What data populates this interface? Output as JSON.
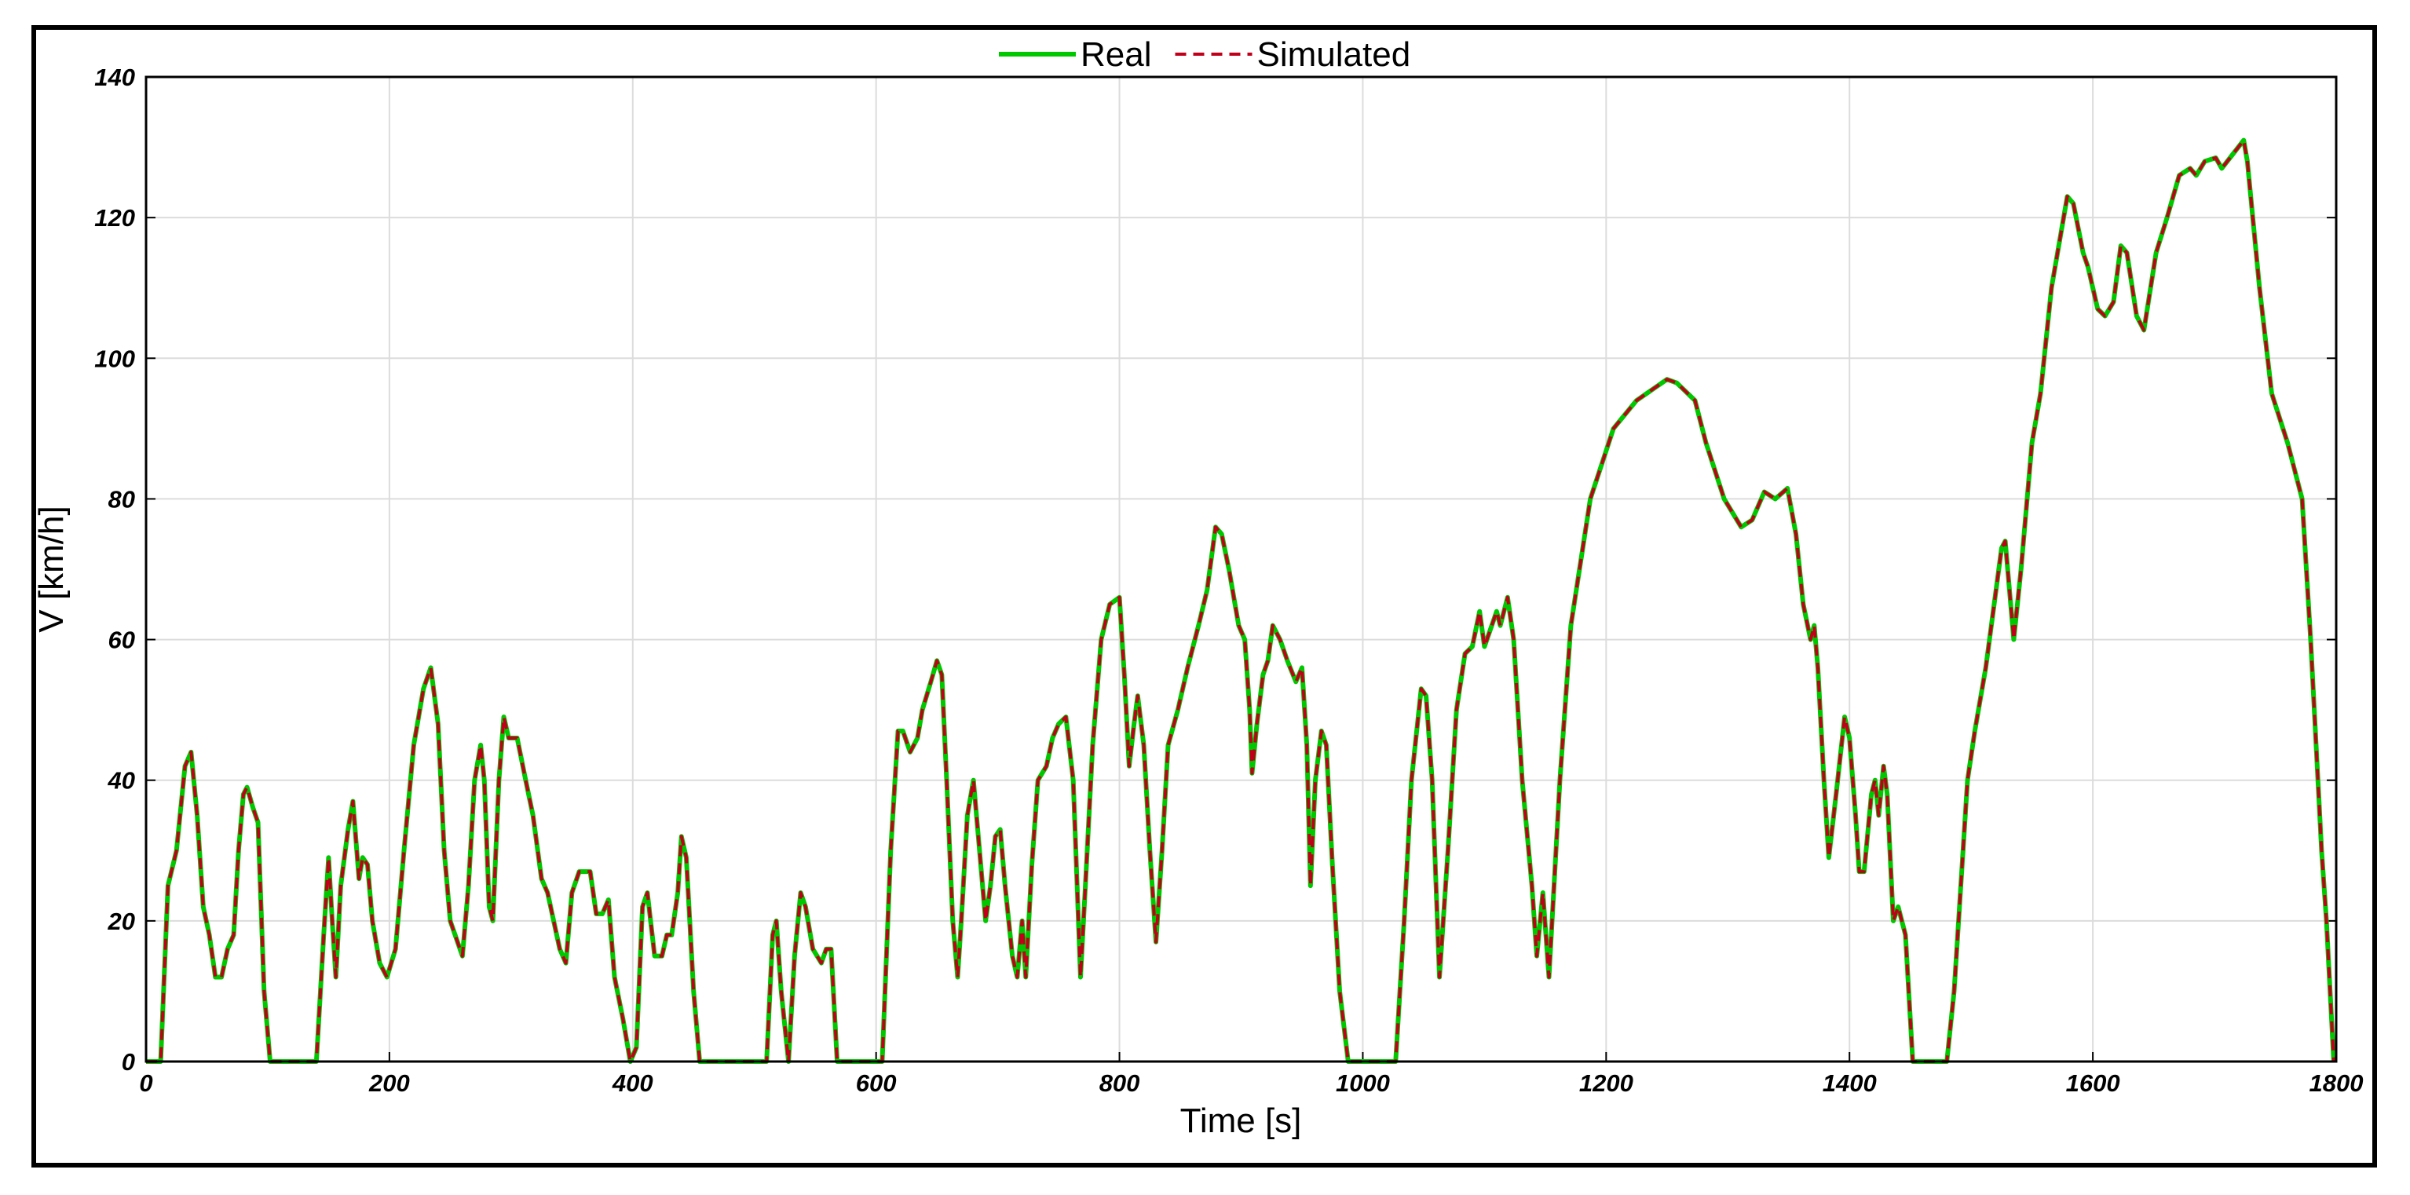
{
  "chart_data": {
    "type": "line",
    "xlabel": "Time [s]",
    "ylabel": "V [km/h]",
    "x": [
      0,
      12,
      18,
      25,
      32,
      37,
      42,
      47,
      52,
      57,
      62,
      67,
      72,
      76,
      80,
      83,
      88,
      92,
      97,
      102,
      140,
      146,
      150,
      153,
      156,
      160,
      166,
      170,
      175,
      178,
      182,
      186,
      192,
      198,
      205,
      212,
      220,
      228,
      234,
      240,
      245,
      250,
      256,
      260,
      265,
      270,
      275,
      278,
      282,
      285,
      290,
      294,
      298,
      305,
      312,
      318,
      325,
      330,
      335,
      340,
      345,
      350,
      356,
      365,
      370,
      375,
      380,
      385,
      392,
      398,
      403,
      408,
      412,
      418,
      424,
      428,
      432,
      437,
      440,
      444,
      450,
      455,
      510,
      515,
      518,
      522,
      528,
      533,
      538,
      542,
      548,
      555,
      559,
      563,
      568,
      605,
      612,
      618,
      622,
      628,
      634,
      638,
      645,
      650,
      654,
      658,
      663,
      667,
      670,
      675,
      680,
      685,
      690,
      694,
      698,
      702,
      706,
      712,
      716,
      720,
      723,
      728,
      733,
      740,
      745,
      750,
      756,
      762,
      768,
      772,
      778,
      785,
      792,
      800,
      804,
      808,
      812,
      815,
      820,
      825,
      830,
      835,
      840,
      848,
      856,
      865,
      872,
      879,
      884,
      890,
      898,
      903,
      907,
      909,
      913,
      918,
      922,
      926,
      932,
      938,
      945,
      950,
      954,
      957,
      961,
      966,
      970,
      975,
      981,
      988,
      1027,
      1034,
      1040,
      1048,
      1052,
      1057,
      1063,
      1070,
      1077,
      1084,
      1090,
      1096,
      1100,
      1110,
      1113,
      1119,
      1124,
      1131,
      1139,
      1143,
      1148,
      1153,
      1162,
      1171,
      1187,
      1206,
      1225,
      1250,
      1258,
      1273,
      1282,
      1297,
      1311,
      1320,
      1330,
      1339,
      1349,
      1356,
      1362,
      1368,
      1371,
      1374,
      1379,
      1383,
      1389,
      1396,
      1400,
      1405,
      1408,
      1412,
      1418,
      1421,
      1424,
      1428,
      1431,
      1436,
      1440,
      1446,
      1452,
      1480,
      1486,
      1497,
      1503,
      1512,
      1525,
      1528,
      1535,
      1541,
      1550,
      1557,
      1566,
      1579,
      1584,
      1592,
      1596,
      1604,
      1610,
      1617,
      1623,
      1628,
      1636,
      1642,
      1652,
      1661,
      1671,
      1680,
      1685,
      1692,
      1701,
      1706,
      1715,
      1724,
      1727,
      1737,
      1747,
      1760,
      1772,
      1779,
      1788,
      1792,
      1798
    ],
    "series": [
      {
        "name": "Real",
        "color": "#00c800",
        "linestyle": "solid",
        "values": [
          0,
          0,
          25,
          30,
          42,
          44,
          35,
          22,
          18,
          12,
          12,
          16,
          18,
          30,
          38,
          39,
          36,
          34,
          10,
          0,
          0,
          18,
          29,
          20,
          12,
          25,
          33,
          37,
          26,
          29,
          28,
          20,
          14,
          12,
          16,
          30,
          45,
          53,
          56,
          48,
          30,
          20,
          17,
          15,
          25,
          40,
          45,
          40,
          22,
          20,
          40,
          49,
          46,
          46,
          40,
          35,
          26,
          24,
          20,
          16,
          14,
          24,
          27,
          27,
          21,
          21,
          23,
          12,
          6,
          0,
          2,
          22,
          24,
          15,
          15,
          18,
          18,
          24,
          32,
          29,
          10,
          0,
          0,
          18,
          20,
          10,
          0,
          15,
          24,
          22,
          16,
          14,
          16,
          16,
          0,
          0,
          30,
          47,
          47,
          44,
          46,
          50,
          54,
          57,
          55,
          40,
          20,
          12,
          20,
          35,
          40,
          30,
          20,
          25,
          32,
          33,
          25,
          15,
          12,
          20,
          12,
          28,
          40,
          42,
          46,
          48,
          49,
          40,
          12,
          25,
          45,
          60,
          65,
          66,
          55,
          42,
          48,
          52,
          45,
          30,
          17,
          30,
          45,
          50,
          56,
          62,
          67,
          76,
          75,
          70,
          62,
          60,
          50,
          41,
          48,
          55,
          57,
          62,
          60,
          57,
          54,
          56,
          45,
          25,
          40,
          47,
          45,
          28,
          10,
          0,
          0,
          20,
          40,
          53,
          52,
          40,
          12,
          30,
          50,
          58,
          59,
          64,
          59,
          64,
          62,
          66,
          60,
          40,
          25,
          15,
          24,
          12,
          40,
          62,
          80,
          90,
          94,
          97,
          96.5,
          94,
          88,
          80,
          76,
          77,
          81,
          80,
          81.5,
          75,
          65,
          60,
          62,
          56,
          40,
          29,
          38,
          49,
          46,
          35,
          27,
          27,
          38,
          40,
          35,
          42,
          38,
          20,
          22,
          18,
          0,
          0,
          10,
          40,
          47,
          56,
          73,
          74,
          60,
          70,
          88,
          95,
          110,
          123,
          122,
          115,
          113,
          107,
          106,
          108,
          116,
          115,
          106,
          104,
          115,
          120,
          126,
          127,
          126,
          128,
          128.5,
          127,
          129,
          131,
          128,
          110,
          95,
          88,
          80,
          60,
          30,
          20,
          0
        ]
      },
      {
        "name": "Simulated",
        "color": "#c0001a",
        "linestyle": "dashed",
        "values": [
          0,
          0,
          25,
          30,
          42,
          44,
          35,
          22,
          18,
          12,
          12,
          16,
          18,
          30,
          38,
          39,
          36,
          34,
          10,
          0,
          0,
          18,
          29,
          20,
          12,
          25,
          33,
          37,
          26,
          29,
          28,
          20,
          14,
          12,
          16,
          30,
          45,
          53,
          56,
          48,
          30,
          20,
          17,
          15,
          25,
          40,
          45,
          40,
          22,
          20,
          40,
          49,
          46,
          46,
          40,
          35,
          26,
          24,
          20,
          16,
          14,
          24,
          27,
          27,
          21,
          21,
          23,
          12,
          6,
          0,
          2,
          22,
          24,
          15,
          15,
          18,
          18,
          24,
          32,
          29,
          10,
          0,
          0,
          18,
          20,
          10,
          0,
          15,
          24,
          22,
          16,
          14,
          16,
          16,
          0,
          0,
          30,
          47,
          47,
          44,
          46,
          50,
          54,
          57,
          55,
          40,
          20,
          12,
          20,
          35,
          40,
          30,
          20,
          25,
          32,
          33,
          25,
          15,
          12,
          20,
          12,
          28,
          40,
          42,
          46,
          48,
          49,
          40,
          12,
          25,
          45,
          60,
          65,
          66,
          55,
          42,
          48,
          52,
          45,
          30,
          17,
          30,
          45,
          50,
          56,
          62,
          67,
          76,
          75,
          70,
          62,
          60,
          50,
          41,
          48,
          55,
          57,
          62,
          60,
          57,
          54,
          56,
          45,
          25,
          40,
          47,
          45,
          28,
          10,
          0,
          0,
          20,
          40,
          53,
          52,
          40,
          12,
          30,
          50,
          58,
          59,
          64,
          59,
          64,
          62,
          66,
          60,
          40,
          25,
          15,
          24,
          12,
          40,
          62,
          80,
          90,
          94,
          97,
          96.5,
          94,
          88,
          80,
          76,
          77,
          81,
          80,
          81.5,
          75,
          65,
          60,
          62,
          56,
          40,
          29,
          38,
          49,
          46,
          35,
          27,
          27,
          38,
          40,
          35,
          42,
          38,
          20,
          22,
          18,
          0,
          0,
          10,
          40,
          47,
          56,
          73,
          74,
          60,
          70,
          88,
          95,
          110,
          123,
          122,
          115,
          113,
          107,
          106,
          108,
          116,
          115,
          106,
          104,
          115,
          120,
          126,
          127,
          126,
          128,
          128.5,
          127,
          129,
          131,
          128,
          110,
          95,
          88,
          80,
          60,
          30,
          20,
          0
        ]
      }
    ],
    "xlim": [
      0,
      1800
    ],
    "xticks": [
      0,
      200,
      400,
      600,
      800,
      1000,
      1200,
      1400,
      1600,
      1800
    ],
    "ylim": [
      0,
      140
    ],
    "yticks": [
      0,
      20,
      40,
      60,
      80,
      100,
      120,
      140
    ],
    "grid": true,
    "legend": "top"
  }
}
